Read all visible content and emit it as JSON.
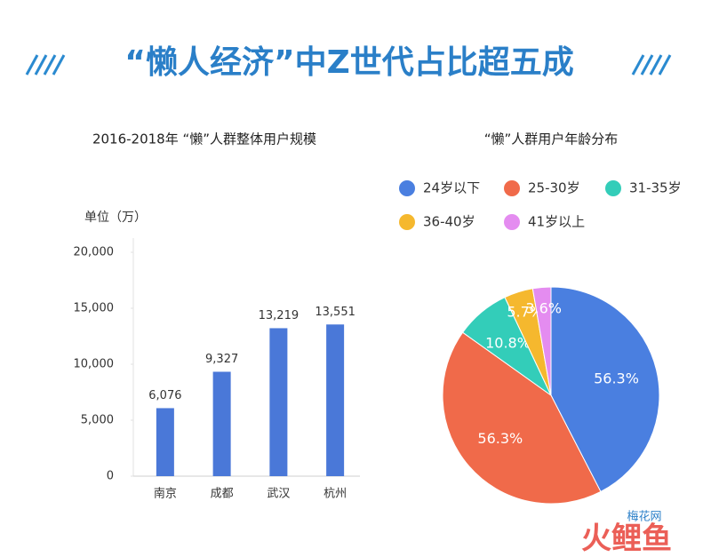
{
  "title": "“懒人经济”中Z世代占比超五成",
  "watermarks": [
    "梅花网",
    "火鲤鱼"
  ],
  "chart_data": [
    {
      "type": "bar",
      "title": "2016-2018年 “懒”人群整体用户规模",
      "y_label": "单位（万）",
      "categories": [
        "南京",
        "成都",
        "武汉",
        "杭州"
      ],
      "values": [
        6076,
        9327,
        13219,
        13551
      ],
      "value_labels": [
        "6,076",
        "9,327",
        "13,219",
        "13,551"
      ],
      "color": "#4a78d8",
      "ylim": [
        0,
        20000
      ],
      "yticks": [
        0,
        {
          "value": 5000,
          "label": "5,000"
        },
        {
          "value": 10000,
          "label": "10,000"
        },
        {
          "value": 15000,
          "label": "15,000"
        },
        {
          "value": 20000,
          "label": "20,000"
        }
      ]
    },
    {
      "type": "pie",
      "title": "“懒”人群用户年龄分布",
      "categories": [
        "24岁以下",
        "25-30岁",
        "31-35岁",
        "36-40岁",
        "41岁以上"
      ],
      "values": [
        56.3,
        56.3,
        10.8,
        5.7,
        3.6
      ],
      "value_labels": [
        "56.3%",
        "56.3%",
        "10.8%",
        "5.7%",
        "3.6%"
      ],
      "colors": [
        "#4a7fe0",
        "#f06a4a",
        "#33cdb9",
        "#f5b82e",
        "#e48cf0"
      ]
    }
  ]
}
